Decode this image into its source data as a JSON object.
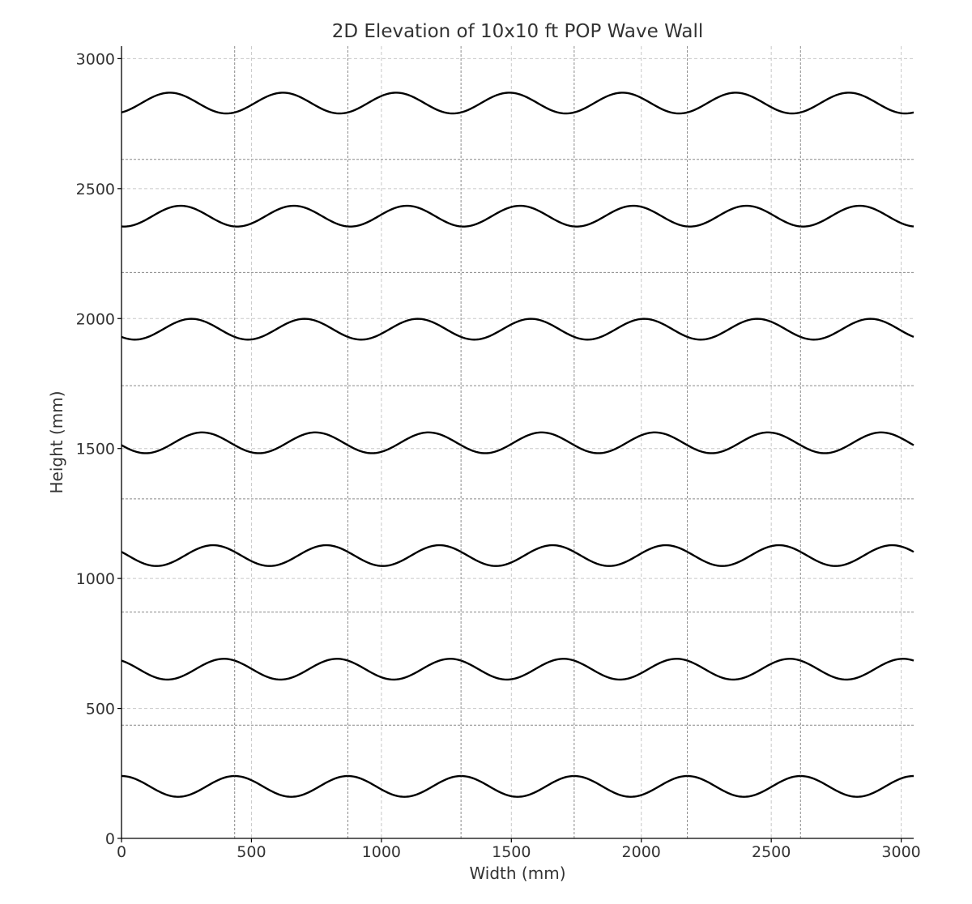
{
  "chart_data": {
    "type": "line",
    "title": "2D Elevation of 10x10 ft POP Wave Wall",
    "xlabel": "Width (mm)",
    "ylabel": "Height (mm)",
    "xlim": [
      0,
      3048
    ],
    "ylim": [
      0,
      3048
    ],
    "xticks": [
      "0",
      "500",
      "1000",
      "1500",
      "2000",
      "2500",
      "3000"
    ],
    "yticks": [
      "0",
      "500",
      "1000",
      "1500",
      "2000",
      "2500",
      "3000"
    ],
    "grid": true,
    "panel_width_mm": 435.43,
    "panel_boundaries_x": [
      435.43,
      870.86,
      1306.29,
      1741.71,
      2177.14,
      2612.57
    ],
    "row_boundaries_y": [
      435.43,
      870.86,
      1306.29,
      1741.71,
      2177.14,
      2612.57
    ],
    "wave_amplitude_mm": 40,
    "wave_rows": [
      {
        "row": 1,
        "baseline_mm": 200,
        "phase_rad": 1.5708
      },
      {
        "row": 2,
        "baseline_mm": 651,
        "phase_rad": 2.1708
      },
      {
        "row": 3,
        "baseline_mm": 1088,
        "phase_rad": 2.7708
      },
      {
        "row": 4,
        "baseline_mm": 1522,
        "phase_rad": 3.3708
      },
      {
        "row": 5,
        "baseline_mm": 1959,
        "phase_rad": 3.9708
      },
      {
        "row": 6,
        "baseline_mm": 2394,
        "phase_rad": 4.5708
      },
      {
        "row": 7,
        "baseline_mm": 2829,
        "phase_rad": 5.1708
      }
    ]
  }
}
